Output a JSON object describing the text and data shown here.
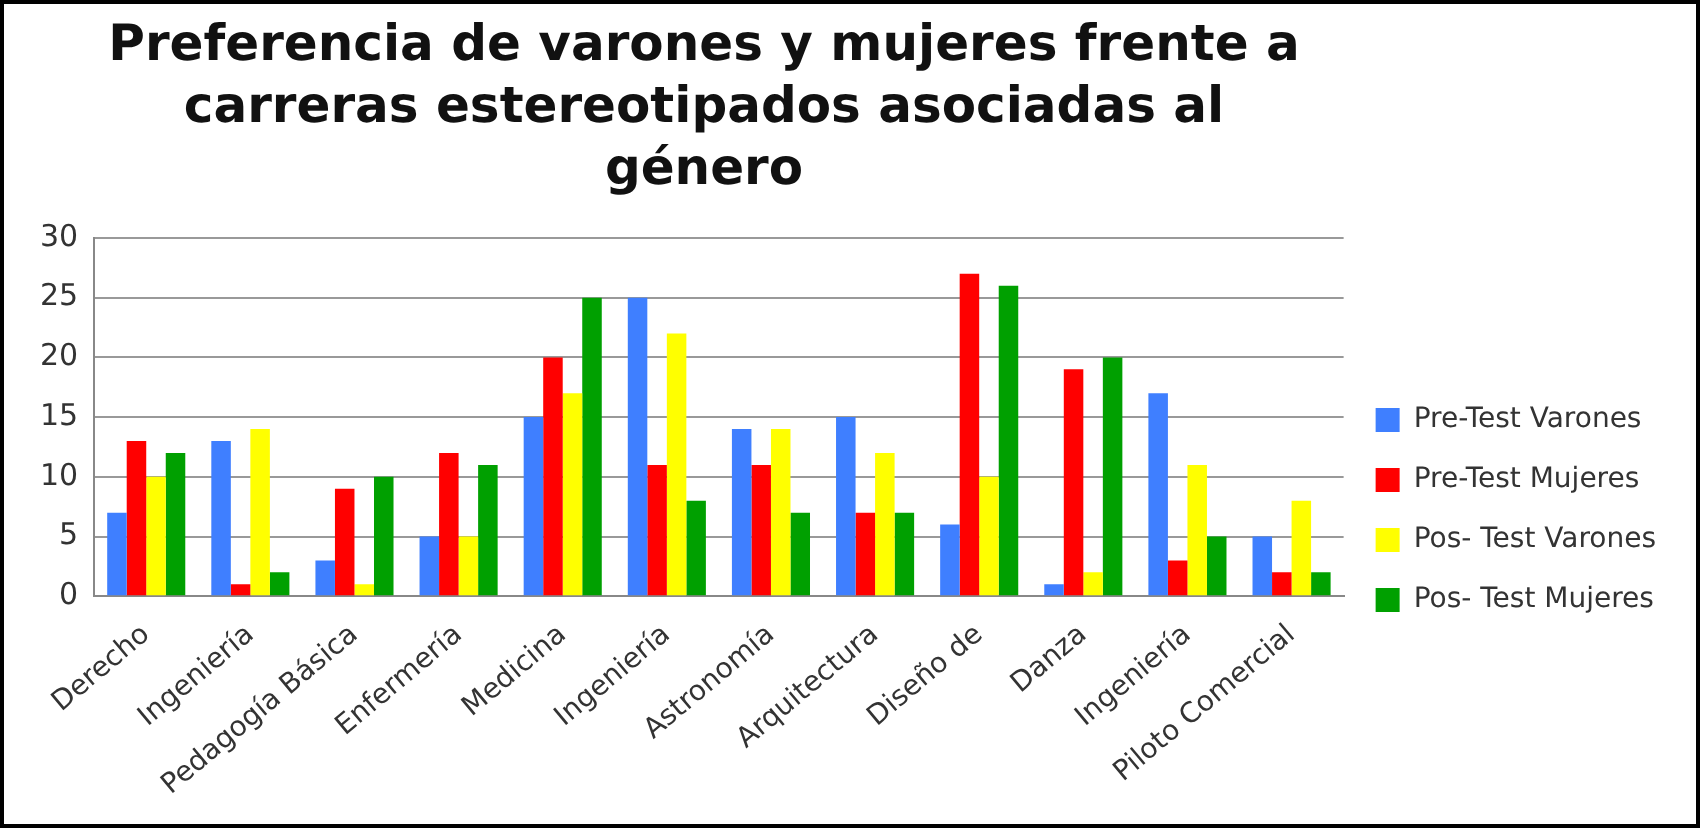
{
  "chart_data": {
    "type": "bar",
    "title": "Preferencia de varones y mujeres frente a carreras estereotipados asociadas al género",
    "categories": [
      "Derecho",
      "Ingeniería",
      "Pedagogía Básica",
      "Enfermería",
      "Medicina",
      "Ingeniería",
      "Astronomía",
      "Arquitectura",
      "Diseño de",
      "Danza",
      "Ingeniería",
      "Piloto Comercial"
    ],
    "series": [
      {
        "name": "Pre-Test Varones",
        "color": "#3f7fff",
        "values": [
          7,
          13,
          3,
          5,
          15,
          25,
          14,
          15,
          6,
          1,
          17,
          5
        ]
      },
      {
        "name": "Pre-Test Mujeres",
        "color": "#ff0000",
        "values": [
          13,
          1,
          9,
          12,
          20,
          11,
          11,
          7,
          27,
          19,
          3,
          2
        ]
      },
      {
        "name": "Pos- Test Varones",
        "color": "#ffff00",
        "values": [
          10,
          14,
          1,
          5,
          17,
          22,
          14,
          12,
          10,
          2,
          11,
          8
        ]
      },
      {
        "name": "Pos- Test Mujeres",
        "color": "#00a000",
        "values": [
          12,
          2,
          10,
          11,
          25,
          8,
          7,
          7,
          26,
          20,
          5,
          2
        ]
      }
    ],
    "ylim": [
      0,
      30
    ],
    "yticks": [
      0,
      5,
      10,
      15,
      20,
      25,
      30
    ],
    "grid": "y",
    "legend": "right"
  }
}
